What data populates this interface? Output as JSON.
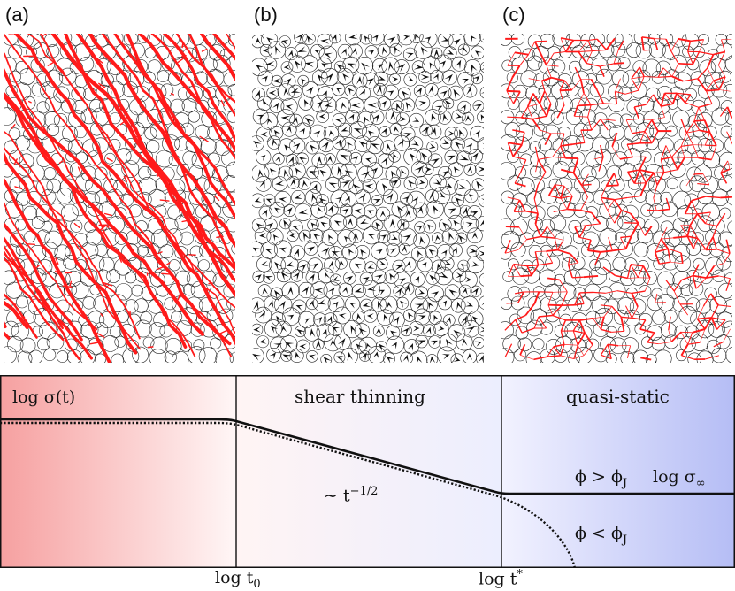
{
  "panels": [
    {
      "label": "(a)",
      "style": "force-chains",
      "color": "#ff1a1a"
    },
    {
      "label": "(b)",
      "style": "displacement-arrows",
      "color": "#111111"
    },
    {
      "label": "(c)",
      "style": "contact-network",
      "color": "#ff1a1a"
    }
  ],
  "diagram": {
    "y_label": "log σ(t)",
    "regions": [
      {
        "name": "newtonian",
        "label": "",
        "color_from": "#f6a0a0",
        "color_to": "#fff6f6"
      },
      {
        "name": "shear-thinning",
        "label": "shear thinning",
        "color_from": "#fff4f4",
        "color_to": "#eceefe"
      },
      {
        "name": "quasi-static",
        "label": "quasi-static",
        "color_from": "#f2f2ff",
        "color_to": "#b5bdf5"
      }
    ],
    "slope_label": "∼ t",
    "slope_exponent": "−1/2",
    "above_jamming": "ϕ > ϕ",
    "below_jamming": "ϕ < ϕ",
    "jamming_subscript": "J",
    "sigma_inf": "log σ",
    "sigma_inf_subscript": "∞",
    "x_ticks": [
      {
        "name": "t0",
        "text": "log t",
        "sub": "0"
      },
      {
        "name": "tstar",
        "text": "log t",
        "sup": "*"
      }
    ]
  }
}
